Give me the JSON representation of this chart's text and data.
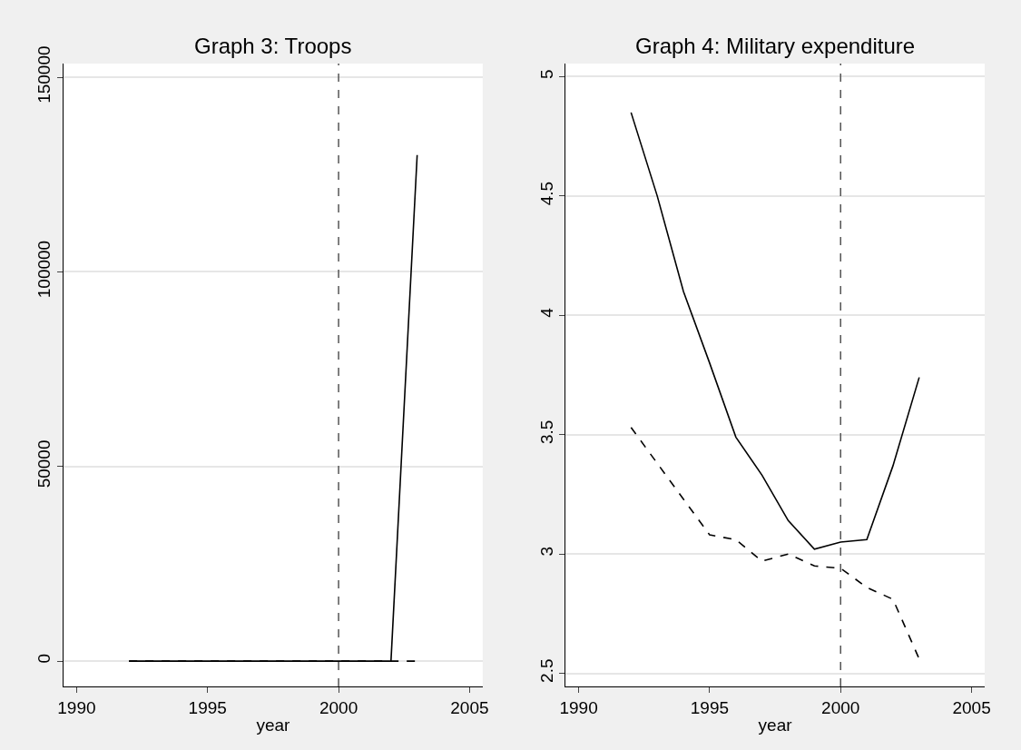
{
  "chart_data": [
    {
      "type": "line",
      "title": "Graph 3: Troops",
      "xlabel": "year",
      "x": [
        1992,
        1993,
        1994,
        1995,
        1996,
        1997,
        1998,
        1999,
        2000,
        2001,
        2002,
        2003
      ],
      "series": [
        {
          "color": "#000000",
          "line_style": "solid",
          "values": [
            0,
            0,
            0,
            0,
            0,
            0,
            0,
            0,
            0,
            0,
            0,
            130000
          ]
        },
        {
          "color": "#000000",
          "line_style": "dashed",
          "values": [
            0,
            0,
            0,
            0,
            0,
            0,
            0,
            0,
            0,
            0,
            0,
            0
          ]
        }
      ],
      "xlim": [
        1989.5,
        2005.5
      ],
      "xticks": [
        1990,
        1995,
        2000,
        2005
      ],
      "ylim": [
        -6500,
        153500
      ],
      "yticks": [
        0,
        50000,
        100000,
        150000
      ],
      "ref_lines": [
        {
          "axis": "x",
          "value": 2000,
          "color": "#555555",
          "line_style": "dashed"
        }
      ],
      "grid": "y",
      "legend": false
    },
    {
      "type": "line",
      "title": "Graph 4: Military expenditure",
      "xlabel": "year",
      "x": [
        1992,
        1993,
        1994,
        1995,
        1996,
        1997,
        1998,
        1999,
        2000,
        2001,
        2002,
        2003
      ],
      "series": [
        {
          "color": "#000000",
          "line_style": "solid",
          "values": [
            4.85,
            4.5,
            4.1,
            3.8,
            3.49,
            3.33,
            3.14,
            3.02,
            3.05,
            3.06,
            3.37,
            3.74
          ]
        },
        {
          "color": "#000000",
          "line_style": "dashed",
          "values": [
            3.53,
            3.38,
            3.23,
            3.08,
            3.06,
            2.97,
            3.0,
            2.95,
            2.94,
            2.86,
            2.81,
            2.56
          ]
        }
      ],
      "xlim": [
        1989.5,
        2005.5
      ],
      "xticks": [
        1990,
        1995,
        2000,
        2005
      ],
      "ylim": [
        2.445,
        5.055
      ],
      "yticks": [
        {
          "value": 2.5,
          "label": "2.5"
        },
        3,
        3.5,
        4,
        4.5,
        5
      ],
      "ref_lines": [
        {
          "axis": "x",
          "value": 2000,
          "color": "#555555",
          "line_style": "dashed"
        }
      ],
      "grid": "y",
      "legend": false
    }
  ]
}
